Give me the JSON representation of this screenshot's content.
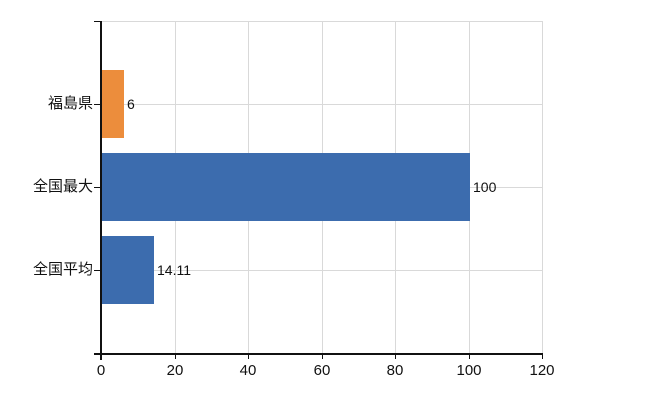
{
  "chart_data": {
    "type": "bar",
    "orientation": "horizontal",
    "categories": [
      "福島県",
      "全国最大",
      "全国平均"
    ],
    "values": [
      6,
      100,
      14.11
    ],
    "value_labels": [
      "6",
      "100",
      "14.11"
    ],
    "bar_colors": [
      "#EC8D3C",
      "#3C6CAE",
      "#3C6CAE"
    ],
    "xlim": [
      0,
      120
    ],
    "x_ticks": [
      0,
      20,
      40,
      60,
      80,
      100,
      120
    ],
    "x_tick_labels": [
      "0",
      "20",
      "40",
      "60",
      "80",
      "100",
      "120"
    ],
    "grid": true,
    "legend_position": "none"
  },
  "styles": {
    "background_color": "#FFFFFF",
    "grid_color": "#D9D9D9",
    "axis_color": "#111111",
    "text_color": "#111111"
  }
}
